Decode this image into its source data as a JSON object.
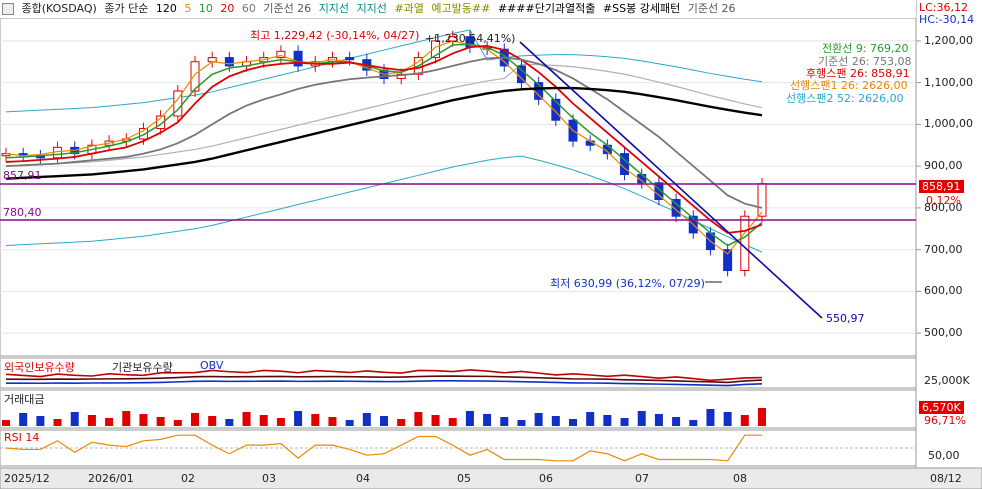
{
  "header": {
    "symbol": "종합(KOSDAQ)",
    "ma_caption": "종가 단순",
    "ma_periods": [
      "120",
      "5",
      "10",
      "20",
      "60"
    ],
    "ma_colors": [
      "#000000",
      "#e88a00",
      "#2a9a2a",
      "#e00000",
      "#777777"
    ],
    "line1": "기준선 26",
    "line2": "지지선",
    "line3": "지지선",
    "tag1": "#과열",
    "tag2": "예고발동##",
    "tag3": "####단기과열적출",
    "tag4": "#SS봉 강세패턴",
    "tag5": "기준선 26",
    "lc": "LC:36,12",
    "hc": "HC:-30,14"
  },
  "annotations": {
    "high": "최고 1,229,42 (-30,14%, 04/27)",
    "high2": "+1,230,54,41%)",
    "low": "최저 630,99 (36,12%, 07/29)",
    "trend_end": "550,97",
    "support1": "857,91",
    "support2": "780,40"
  },
  "right_labels": {
    "legend1": "전환선 9: 769,20",
    "legend2": "기준선 26: 753,08",
    "legend3": "후행스팬 26: 858,91",
    "legend4": "선행스팬1 26: 2626,00",
    "legend5": "선행스팬2 52: 2626,00",
    "price": "858,91",
    "pct": "0,12%",
    "vol_axis": "25,000K",
    "vol_val": "6,570K",
    "vol_pct": "96,71%",
    "rsi_axis": "50,00"
  },
  "sub_titles": {
    "investor1": "외국인보유수량",
    "investor2": "기관보유수량",
    "investor3": "OBV",
    "volume": "거래대금",
    "rsi": "RSI 14"
  },
  "x_axis": [
    "2025/12",
    "2026/01",
    "02",
    "03",
    "04",
    "05",
    "06",
    "07",
    "08",
    "08/12"
  ],
  "chart_data": {
    "type": "line",
    "ylim": [
      450,
      1250
    ],
    "y_ticks": [
      "1,200,00",
      "1,100,00",
      "1,000,00",
      "900,00",
      "800,00",
      "700,00",
      "600,00",
      "500,00"
    ],
    "series": [
      {
        "name": "종가",
        "values": [
          930,
          925,
          920,
          945,
          930,
          950,
          960,
          965,
          990,
          1020,
          1080,
          1150,
          1160,
          1140,
          1150,
          1160,
          1175,
          1140,
          1150,
          1160,
          1155,
          1130,
          1110,
          1120,
          1160,
          1200,
          1210,
          1185,
          1180,
          1140,
          1100,
          1060,
          1010,
          960,
          950,
          930,
          880,
          860,
          820,
          780,
          740,
          700,
          650,
          780,
          858
        ]
      },
      {
        "values": [
          930,
          925,
          928,
          935,
          938,
          948,
          955,
          965,
          985,
          1015,
          1060,
          1120,
          1150,
          1145,
          1150,
          1155,
          1165,
          1150,
          1148,
          1155,
          1150,
          1135,
          1120,
          1125,
          1150,
          1185,
          1200,
          1190,
          1180,
          1150,
          1110,
          1070,
          1030,
          985,
          960,
          935,
          895,
          865,
          830,
          795,
          760,
          720,
          690,
          740,
          790
        ]
      },
      {
        "values": [
          920,
          922,
          925,
          928,
          932,
          940,
          948,
          958,
          975,
          1000,
          1035,
          1085,
          1120,
          1135,
          1140,
          1148,
          1155,
          1150,
          1145,
          1150,
          1150,
          1140,
          1128,
          1125,
          1140,
          1165,
          1190,
          1192,
          1185,
          1165,
          1130,
          1095,
          1055,
          1015,
          980,
          950,
          915,
          880,
          845,
          810,
          775,
          740,
          710,
          730,
          765
        ]
      },
      {
        "values": [
          910,
          912,
          915,
          918,
          922,
          930,
          938,
          945,
          960,
          980,
          1005,
          1050,
          1090,
          1115,
          1130,
          1140,
          1145,
          1148,
          1145,
          1145,
          1148,
          1142,
          1135,
          1130,
          1135,
          1150,
          1170,
          1185,
          1188,
          1178,
          1155,
          1125,
          1090,
          1050,
          1015,
          980,
          945,
          910,
          875,
          840,
          805,
          770,
          740,
          745,
          760
        ]
      },
      {
        "values": [
          900,
          902,
          904,
          906,
          910,
          914,
          918,
          922,
          930,
          940,
          955,
          975,
          1000,
          1025,
          1045,
          1060,
          1072,
          1085,
          1095,
          1102,
          1108,
          1112,
          1115,
          1118,
          1122,
          1130,
          1140,
          1150,
          1158,
          1160,
          1155,
          1145,
          1130,
          1110,
          1085,
          1060,
          1030,
          1000,
          970,
          935,
          900,
          865,
          830,
          810,
          800
        ]
      },
      {
        "values": [
          870,
          872,
          874,
          876,
          878,
          880,
          884,
          888,
          892,
          898,
          904,
          910,
          918,
          928,
          938,
          948,
          958,
          968,
          978,
          988,
          998,
          1008,
          1018,
          1028,
          1038,
          1048,
          1058,
          1066,
          1074,
          1080,
          1084,
          1086,
          1087,
          1087,
          1085,
          1082,
          1078,
          1072,
          1065,
          1058,
          1050,
          1042,
          1035,
          1028,
          1022
        ]
      }
    ]
  },
  "colors": {
    "up": "#e00000",
    "down": "#1030c8",
    "trend": "#0a0aa8",
    "support": "#8a0a8a",
    "band": "#2aa8c8",
    "cloud": "#b0b0b0"
  }
}
